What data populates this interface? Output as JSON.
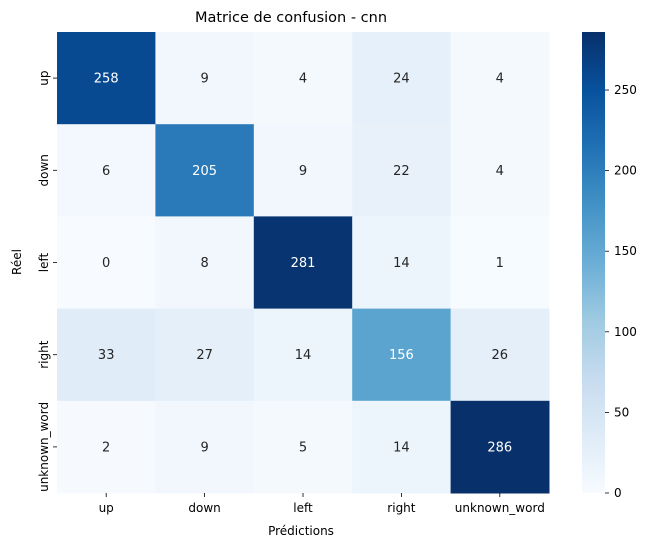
{
  "chart_data": {
    "type": "heatmap",
    "title": "Matrice de confusion - cnn",
    "xlabel": "Prédictions",
    "ylabel": "Réel",
    "x_categories": [
      "up",
      "down",
      "left",
      "right",
      "unknown_word"
    ],
    "y_categories": [
      "up",
      "down",
      "left",
      "right",
      "unknown_word"
    ],
    "values": [
      [
        258,
        9,
        4,
        24,
        4
      ],
      [
        6,
        205,
        9,
        22,
        4
      ],
      [
        0,
        8,
        281,
        14,
        1
      ],
      [
        33,
        27,
        14,
        156,
        26
      ],
      [
        2,
        9,
        5,
        14,
        286
      ]
    ],
    "colormap": "Blues",
    "color_range": [
      0,
      286
    ],
    "colorbar_ticks": [
      0,
      50,
      100,
      150,
      200,
      250
    ],
    "annotation_threshold": 143,
    "colors": {
      "low": "#f7fbff",
      "high": "#08306b"
    }
  }
}
